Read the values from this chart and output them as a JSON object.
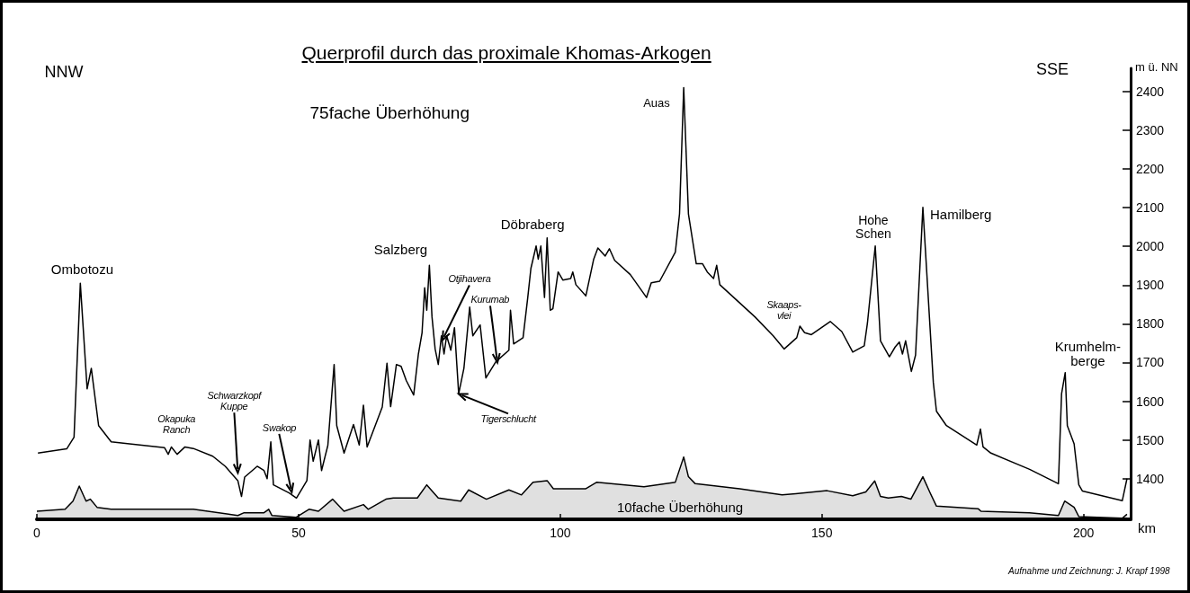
{
  "chart_data": {
    "type": "line",
    "title": "Querprofil durch das proximale Khomas-Arkogen",
    "subtitle": "75fache Überhöhung",
    "xlabel": "km",
    "ylabel": "m ü. NN",
    "xlim": [
      0,
      209
    ],
    "xticks": [
      0,
      50,
      100,
      150,
      200
    ],
    "ylim": [
      1295,
      2460
    ],
    "yticks": [
      1400,
      1500,
      1600,
      1700,
      1800,
      1900,
      2000,
      2100,
      2200,
      2300,
      2400
    ],
    "marker": "none",
    "line_style": "solid",
    "series": [
      {
        "color": "#000000",
        "x": [
          0.2,
          5.7,
          7.1,
          8.3,
          9.6,
          10.4,
          11.8,
          14.2,
          17.7,
          24.4,
          25.1,
          25.7,
          26.8,
          28.3,
          29.9,
          33.6,
          36,
          38.4,
          39.1,
          39.7,
          42.1,
          43.4,
          44,
          44.7,
          45.2,
          48.2,
          49.6,
          51.6,
          52.2,
          52.8,
          53.8,
          54.4,
          55.6,
          56.8,
          57.3,
          58.7,
          60.5,
          61.6,
          62.4,
          63.1,
          66,
          66.9,
          67.6,
          68.7,
          69.6,
          70.6,
          72,
          72.9,
          73.6,
          74.1,
          74.5,
          75,
          75.5,
          76.1,
          76.7,
          77.3,
          77.8,
          78.3,
          79.1,
          79.8,
          80.6,
          81.6,
          82.7,
          83.3,
          84.7,
          85.8,
          87.7,
          90.2,
          90.5,
          91.1,
          92.9,
          93.8,
          94.4,
          95.4,
          95.8,
          96.3,
          97,
          97.5,
          98.1,
          98.6,
          99.6,
          100.5,
          102,
          102.4,
          103,
          104.9,
          106.4,
          107.2,
          108.6,
          109.4,
          110.4,
          113.4,
          116.5,
          117.4,
          119,
          122,
          122.8,
          123.6,
          124.5,
          126,
          127.2,
          128.1,
          129.3,
          129.9,
          130.5,
          137.2,
          140.7,
          142.8,
          145.2,
          145.8,
          146.7,
          148,
          151.6,
          153.8,
          155.9,
          158.1,
          158.7,
          160.2,
          161.2,
          162.9,
          164,
          164.8,
          165.4,
          166,
          167.1,
          167.9,
          169.3,
          171.3,
          171.9,
          173.8,
          179.6,
          180.3,
          180.8,
          182.3,
          189.7,
          195.2,
          195.8,
          196.5,
          196.9,
          198.2,
          199.1,
          199.8,
          207.4,
          208.3
        ],
        "values": [
          1466,
          1477,
          1507,
          1905,
          1632,
          1685,
          1537,
          1495,
          1490,
          1480,
          1463,
          1482,
          1463,
          1482,
          1478,
          1458,
          1432,
          1395,
          1354,
          1404,
          1432,
          1421,
          1400,
          1495,
          1384,
          1363,
          1350,
          1395,
          1500,
          1445,
          1500,
          1421,
          1486,
          1695,
          1537,
          1466,
          1540,
          1487,
          1590,
          1482,
          1585,
          1698,
          1586,
          1695,
          1690,
          1653,
          1616,
          1722,
          1777,
          1893,
          1835,
          1951,
          1818,
          1735,
          1695,
          1769,
          1722,
          1769,
          1732,
          1790,
          1619,
          1685,
          1843,
          1769,
          1797,
          1660,
          1702,
          1732,
          1835,
          1748,
          1764,
          1868,
          1943,
          2001,
          1967,
          2001,
          1868,
          2022,
          1835,
          1839,
          1934,
          1913,
          1917,
          1934,
          1901,
          1872,
          1967,
          1996,
          1975,
          1994,
          1964,
          1927,
          1868,
          1906,
          1910,
          1985,
          2084,
          2410,
          2084,
          1955,
          1955,
          1934,
          1917,
          1951,
          1901,
          1818,
          1769,
          1735,
          1764,
          1794,
          1777,
          1772,
          1806,
          1780,
          1727,
          1743,
          1801,
          2001,
          1756,
          1715,
          1740,
          1753,
          1722,
          1756,
          1677,
          1719,
          2101,
          1648,
          1574,
          1537,
          1487,
          1528,
          1482,
          1466,
          1424,
          1387,
          1619,
          1674,
          1537,
          1490,
          1384,
          1368,
          1343,
          1400
        ]
      },
      {
        "type": "area",
        "color": "#000000",
        "x": [
          0,
          5.4,
          6.9,
          8.1,
          9.4,
          10.2,
          11.5,
          14.2,
          23.8,
          29.9,
          38.4,
          39.6,
          43.4,
          44.3,
          44.9,
          49.5,
          52,
          53.8,
          56.5,
          58.7,
          62.4,
          63.3,
          66.7,
          68.1,
          72.7,
          74.5,
          76.7,
          81,
          82.5,
          85.9,
          90.2,
          92.6,
          94.8,
          97.5,
          98.7,
          104.9,
          107,
          116,
          122,
          123.6,
          124.5,
          125.8,
          134.3,
          142.4,
          145,
          151,
          155.9,
          158.4,
          160.1,
          161.2,
          162.7,
          165.2,
          167,
          169.3,
          170.7,
          171.9,
          179.9,
          180.4,
          189.7,
          195.2,
          196.4,
          198.2,
          199.1,
          207.4,
          208.3
        ],
        "values": [
          1316,
          1321,
          1342,
          1381,
          1342,
          1347,
          1326,
          1321,
          1321,
          1321,
          1305,
          1312,
          1312,
          1321,
          1305,
          1300,
          1321,
          1316,
          1347,
          1316,
          1333,
          1321,
          1347,
          1350,
          1350,
          1384,
          1350,
          1342,
          1371,
          1347,
          1371,
          1358,
          1391,
          1395,
          1374,
          1374,
          1391,
          1379,
          1391,
          1456,
          1405,
          1387,
          1374,
          1358,
          1361,
          1369,
          1356,
          1366,
          1394,
          1354,
          1350,
          1354,
          1347,
          1405,
          1363,
          1329,
          1322,
          1316,
          1312,
          1305,
          1342,
          1326,
          1302,
          1298,
          1308
        ]
      }
    ],
    "annotations": [
      "NNW",
      "SSE",
      {
        "text": "Ombotozu",
        "x": 8.3,
        "y": 1905
      },
      {
        "text": "Okapuka\nRanch",
        "x": 26,
        "y": 1463
      },
      {
        "text": "Schwarzkopf\nKuppe",
        "x": 38.4,
        "y": 1415
      },
      {
        "text": "Swakop",
        "x": 48.7,
        "y": 1365
      },
      {
        "text": "Salzberg",
        "x": 75,
        "y": 1951
      },
      {
        "text": "Otjihavera",
        "x": 77.5,
        "y": 1758
      },
      {
        "text": "Tigerschlucht",
        "x": 80.6,
        "y": 1619
      },
      {
        "text": "Kurumab",
        "x": 88,
        "y": 1700
      },
      {
        "text": "Döbraberg",
        "x": 97.5,
        "y": 2022
      },
      {
        "text": "Auas",
        "x": 123.6,
        "y": 2410
      },
      {
        "text": "Skaaps-\nvlei",
        "x": 146,
        "y": 1794
      },
      {
        "text": "Hohe\nSchen",
        "x": 160.2,
        "y": 2001
      },
      {
        "text": "Hamilberg",
        "x": 169.3,
        "y": 2101
      },
      {
        "text": "Krumhelm-\nberge",
        "x": 196.5,
        "y": 1674
      },
      "10fache Überhöhung",
      "Aufnahme und Zeichnung: J. Krapf 1998"
    ]
  }
}
